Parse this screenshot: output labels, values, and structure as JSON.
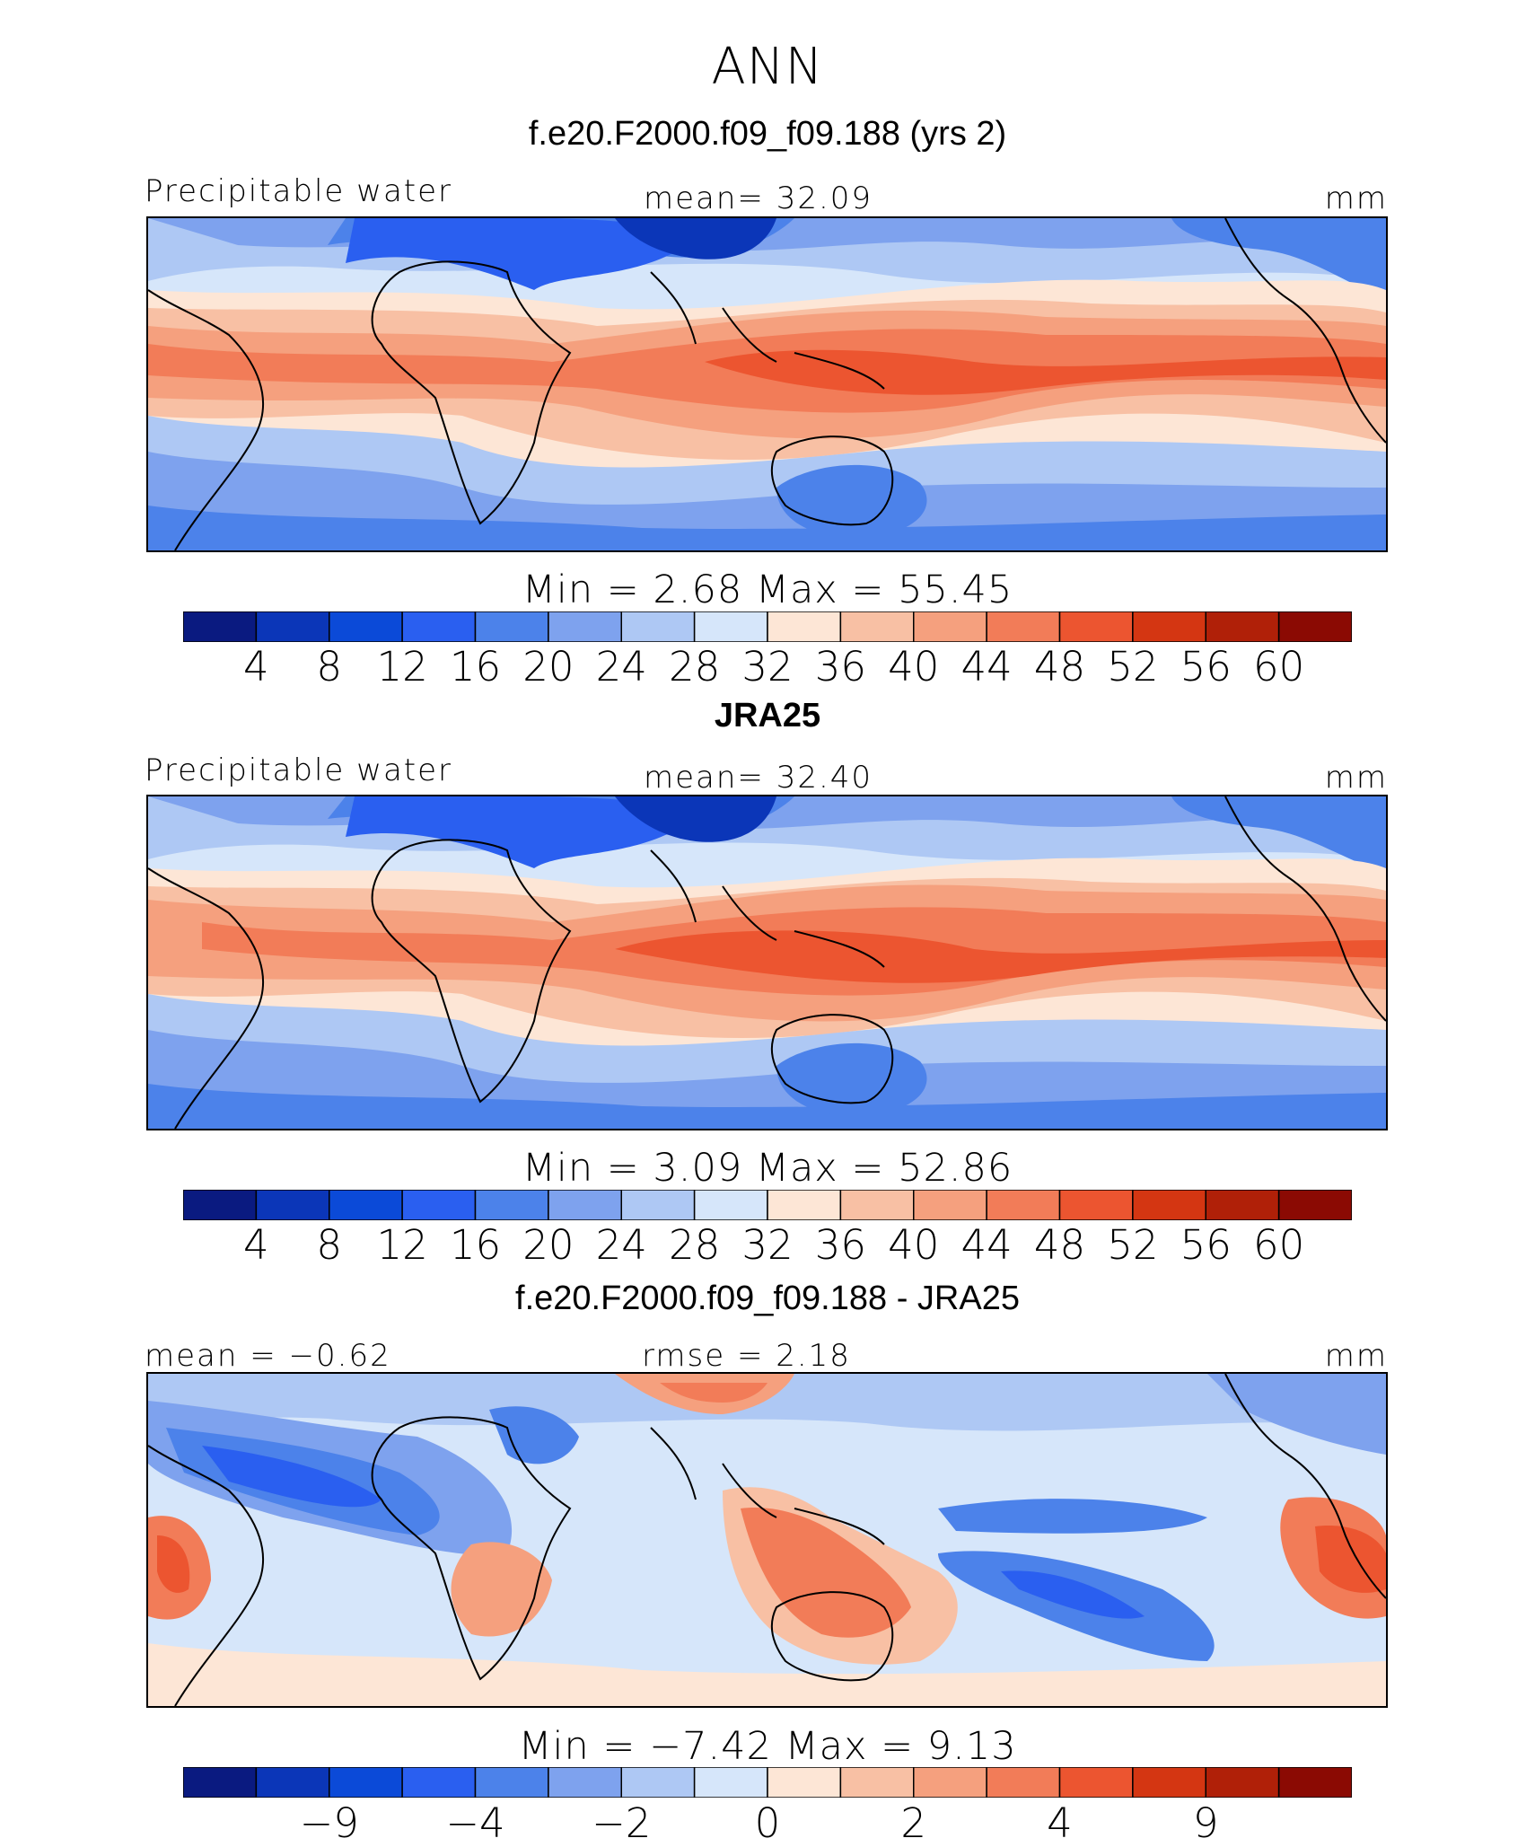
{
  "figure": {
    "title": "ANN",
    "palette": [
      "#0a1a80",
      "#0b36b8",
      "#0b4ad8",
      "#2a5ff0",
      "#4c82ea",
      "#7ea2ee",
      "#aec8f4",
      "#d6e6fa",
      "#fde6d6",
      "#f8c0a4",
      "#f5a07e",
      "#f27c58",
      "#ec5530",
      "#d43612",
      "#b02008",
      "#8b0a03"
    ]
  },
  "panels": [
    {
      "title": "f.e20.F2000.f09_f09.188 (yrs 2)",
      "left_label": "Precipitable water",
      "center_label": "mean=   32.09",
      "units": "mm",
      "minmax": "Min  =     2.68  Max  =    55.45"
    },
    {
      "title": "JRA25",
      "left_label": "Precipitable water",
      "center_label": "mean=   32.40",
      "units": "mm",
      "minmax": "Min  =     3.09  Max  =    52.86"
    },
    {
      "title": "f.e20.F2000.f09_f09.188 - JRA25",
      "left_label": "mean  =   −0.62",
      "center_label": "rmse  =     2.18",
      "units": "mm",
      "minmax": "Min  =   −7.42  Max  =     9.13"
    }
  ],
  "chart_data": [
    {
      "type": "heatmap",
      "title": "f.e20.F2000.f09_f09.188 (yrs 2)",
      "variable": "Precipitable water",
      "units": "mm",
      "mean": 32.09,
      "min": 2.68,
      "max": 55.45,
      "colorbar_ticks": [
        "4",
        "8",
        "12",
        "16",
        "20",
        "24",
        "28",
        "32",
        "36",
        "40",
        "44",
        "48",
        "52",
        "56",
        "60"
      ]
    },
    {
      "type": "heatmap",
      "title": "JRA25",
      "variable": "Precipitable water",
      "units": "mm",
      "mean": 32.4,
      "min": 3.09,
      "max": 52.86,
      "colorbar_ticks": [
        "4",
        "8",
        "12",
        "16",
        "20",
        "24",
        "28",
        "32",
        "36",
        "40",
        "44",
        "48",
        "52",
        "56",
        "60"
      ]
    },
    {
      "type": "heatmap",
      "title": "f.e20.F2000.f09_f09.188 - JRA25",
      "units": "mm",
      "mean": -0.62,
      "rmse": 2.18,
      "min": -7.42,
      "max": 9.13,
      "colorbar_ticks": [
        "−9",
        "−4",
        "−2",
        "0",
        "2",
        "4",
        "9"
      ]
    }
  ]
}
